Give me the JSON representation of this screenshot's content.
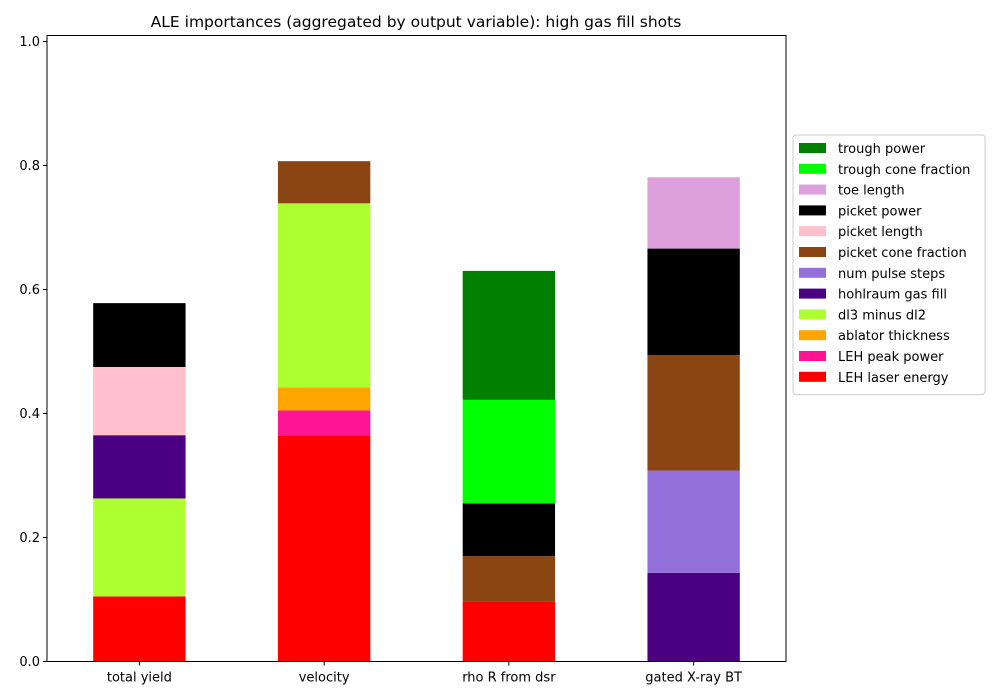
{
  "chart_data": {
    "type": "bar",
    "stacked": true,
    "title": "ALE importances (aggregated by output variable): high gas fill shots",
    "xlabel": "",
    "ylabel": "",
    "ylim": [
      0,
      1.0
    ],
    "yticks": [
      "0.0",
      "0.2",
      "0.4",
      "0.6",
      "0.8",
      "1.0"
    ],
    "categories": [
      "total yield",
      "velocity",
      "rho R from dsr",
      "gated X-ray BT"
    ],
    "grid": false,
    "legend_position": "right",
    "series": [
      {
        "name": "LEH laser energy",
        "color": "#ff0000",
        "values": [
          0.105,
          0.365,
          0.097,
          0
        ]
      },
      {
        "name": "LEH peak power",
        "color": "#ff1493",
        "values": [
          0,
          0.04,
          0,
          0
        ]
      },
      {
        "name": "ablator thickness",
        "color": "#ffa500",
        "values": [
          0,
          0.037,
          0,
          0
        ]
      },
      {
        "name": "dl3 minus dl2",
        "color": "#adff2f",
        "values": [
          0.158,
          0.297,
          0,
          0
        ]
      },
      {
        "name": "hohlraum gas fill",
        "color": "#4b0082",
        "values": [
          0.102,
          0,
          0,
          0.143
        ]
      },
      {
        "name": "num pulse steps",
        "color": "#9370db",
        "values": [
          0,
          0,
          0,
          0.165
        ]
      },
      {
        "name": "picket cone fraction",
        "color": "#8b4513",
        "values": [
          0,
          0.068,
          0.073,
          0.186
        ]
      },
      {
        "name": "picket length",
        "color": "#ffc0cb",
        "values": [
          0.11,
          0,
          0,
          0
        ]
      },
      {
        "name": "picket power",
        "color": "#000000",
        "values": [
          0.103,
          0,
          0.085,
          0.172
        ]
      },
      {
        "name": "toe length",
        "color": "#dda0dd",
        "values": [
          0,
          0,
          0,
          0.115
        ]
      },
      {
        "name": "trough cone fraction",
        "color": "#00ff00",
        "values": [
          0,
          0,
          0.167,
          0
        ]
      },
      {
        "name": "trough power",
        "color": "#008000",
        "values": [
          0,
          0,
          0.208,
          0
        ]
      }
    ]
  }
}
